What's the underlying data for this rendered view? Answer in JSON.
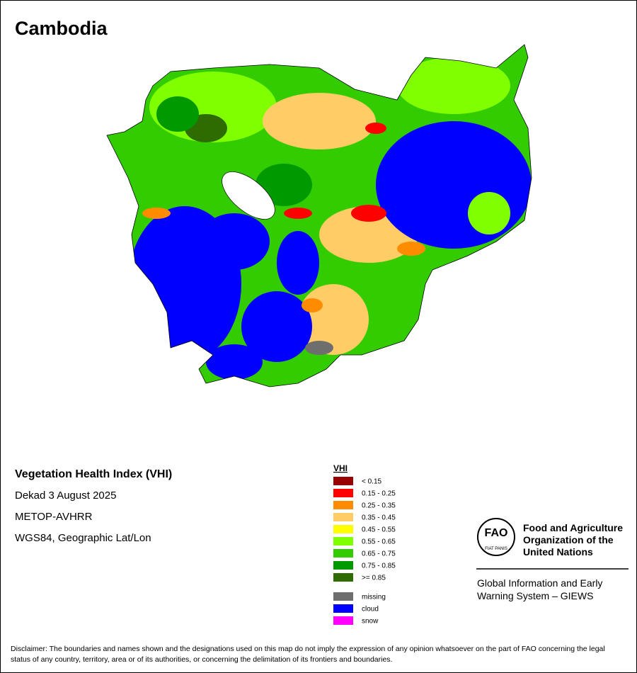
{
  "title": "Cambodia",
  "info": [
    "Vegetation Health Index (VHI)",
    "Dekad 3 August 2025",
    "METOP-AVHRR",
    "WGS84, Geographic Lat/Lon"
  ],
  "legend": {
    "title": "VHI",
    "classes": [
      {
        "label": "< 0.15",
        "color": "#990000"
      },
      {
        "label": "0.15 - 0.25",
        "color": "#ff0000"
      },
      {
        "label": "0.25 - 0.35",
        "color": "#ff8c00"
      },
      {
        "label": "0.35 - 0.45",
        "color": "#ffcc66"
      },
      {
        "label": "0.45 - 0.55",
        "color": "#ffff00"
      },
      {
        "label": "0.55 - 0.65",
        "color": "#80ff00"
      },
      {
        "label": "0.65 - 0.75",
        "color": "#33cc00"
      },
      {
        "label": "0.75 - 0.85",
        "color": "#009900"
      },
      {
        "label": ">= 0.85",
        "color": "#2e6b00"
      }
    ],
    "other": [
      {
        "label": "missing",
        "color": "#6e6e6e"
      },
      {
        "label": "cloud",
        "color": "#0000ff"
      },
      {
        "label": "snow",
        "color": "#ff00ff"
      }
    ]
  },
  "logo": {
    "emblem": "FAO",
    "motto": "FIAT PANIS",
    "org": [
      "Food and Agriculture",
      "Organization of the",
      "United Nations"
    ],
    "system": [
      "Global Information and Early",
      "Warning System – GIEWS"
    ]
  },
  "disclaimer": "Disclaimer: The boundaries and names shown and the designations used on this map do not imply the expression of any opinion whatsoever on the part of FAO concerning the legal status of any country, territory, area or of its authorities, or concerning the delimitation of its frontiers and boundaries."
}
